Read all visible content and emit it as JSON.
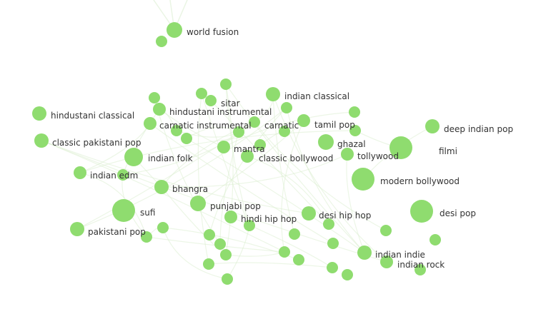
{
  "graph": {
    "node_color": "#8fdc6f",
    "edge_color": "#dcefd2",
    "label_color": "#333333",
    "labeled_nodes": [
      {
        "id": "world-fusion",
        "label": "world fusion"
      },
      {
        "id": "sitar",
        "label": "sitar"
      },
      {
        "id": "indian-classical",
        "label": "indian classical"
      },
      {
        "id": "hindustani-classical",
        "label": "hindustani classical"
      },
      {
        "id": "hindustani-instrumental",
        "label": "hindustani instrumental"
      },
      {
        "id": "carnatic-instrumental",
        "label": "carnatic instrumental"
      },
      {
        "id": "carnatic",
        "label": "carnatic"
      },
      {
        "id": "tamil-pop",
        "label": "tamil pop"
      },
      {
        "id": "deep-indian-pop",
        "label": "deep indian pop"
      },
      {
        "id": "classic-pakistani-pop",
        "label": "classic pakistani pop"
      },
      {
        "id": "ghazal",
        "label": "ghazal"
      },
      {
        "id": "filmi",
        "label": "filmi"
      },
      {
        "id": "mantra",
        "label": "mantra"
      },
      {
        "id": "indian-folk",
        "label": "indian folk"
      },
      {
        "id": "classic-bollywood",
        "label": "classic bollywood"
      },
      {
        "id": "tollywood",
        "label": "tollywood"
      },
      {
        "id": "indian-edm",
        "label": "indian edm"
      },
      {
        "id": "modern-bollywood",
        "label": "modern bollywood"
      },
      {
        "id": "bhangra",
        "label": "bhangra"
      },
      {
        "id": "punjabi-pop",
        "label": "punjabi pop"
      },
      {
        "id": "sufi",
        "label": "sufi"
      },
      {
        "id": "hindi-hip-hop",
        "label": "hindi hip hop"
      },
      {
        "id": "desi-hip-hop",
        "label": "desi hip hop"
      },
      {
        "id": "desi-pop",
        "label": "desi pop"
      },
      {
        "id": "pakistani-pop",
        "label": "pakistani pop"
      },
      {
        "id": "indian-indie",
        "label": "indian indie"
      },
      {
        "id": "indian-rock",
        "label": "indian rock"
      }
    ]
  }
}
